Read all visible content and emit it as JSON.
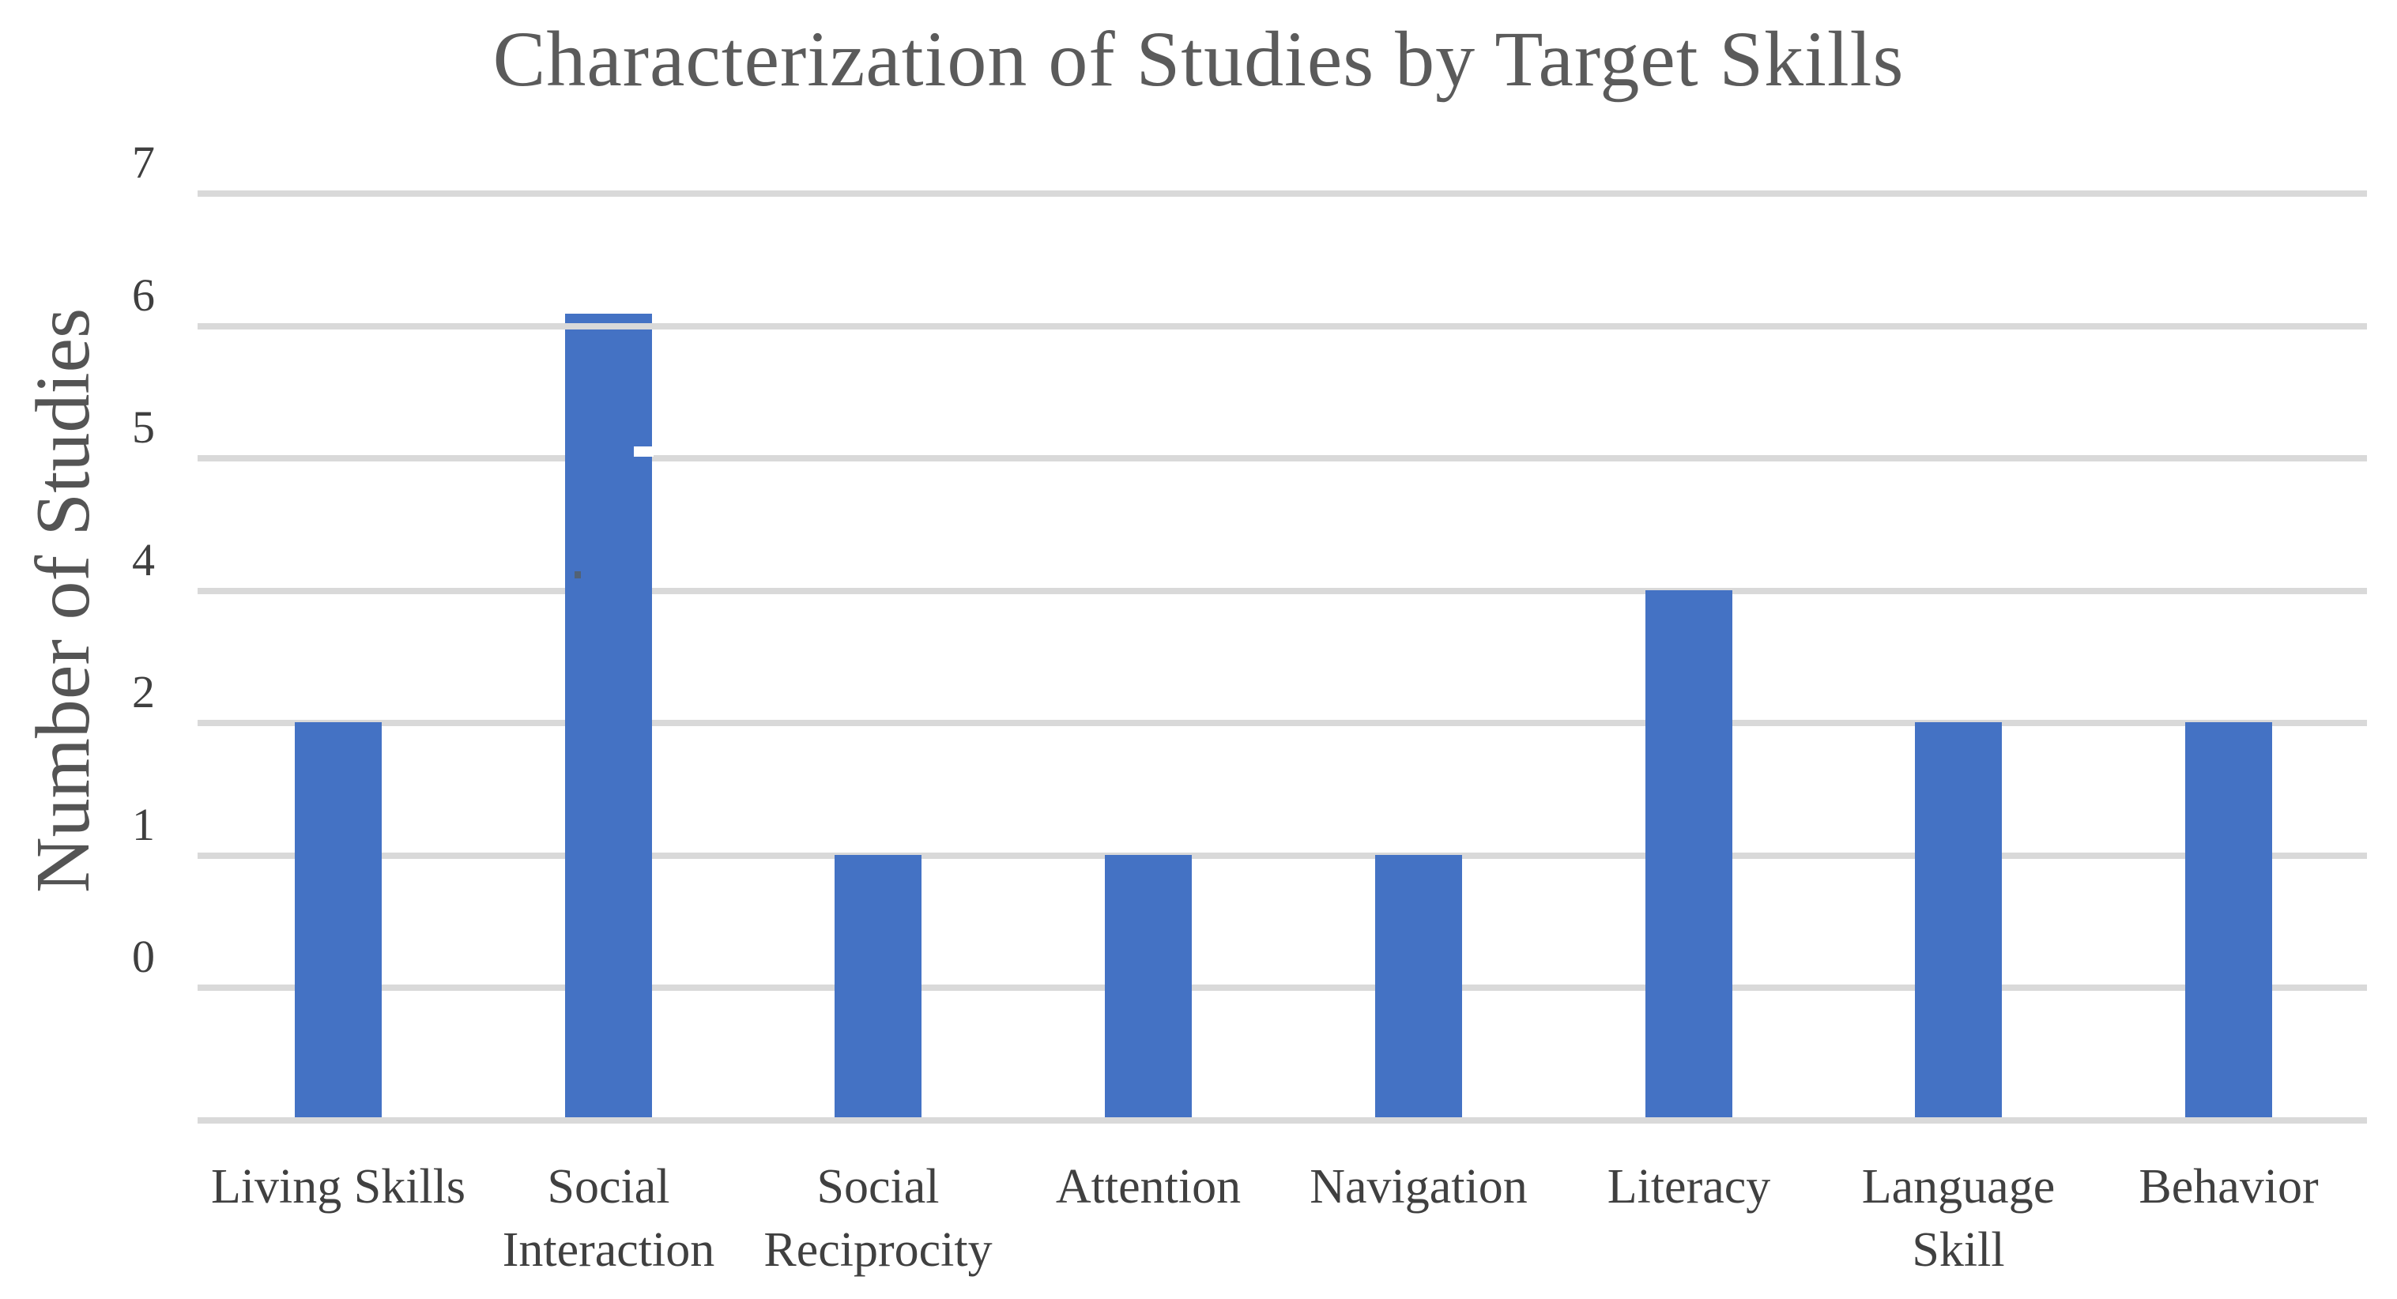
{
  "chart": {
    "title": "Characterization of Studies by Target Skills",
    "y_axis": {
      "title": "Number of Studies",
      "tick_labels": [
        "7",
        "6",
        "5",
        "4",
        "2",
        "1",
        "0"
      ]
    },
    "categories": [
      {
        "label": "Living Skills",
        "lines": [
          "Living Skills"
        ],
        "value": 2
      },
      {
        "label": "Social Interaction",
        "lines": [
          "Social",
          "Interaction"
        ],
        "value": 6
      },
      {
        "label": "Social Reciprocity",
        "lines": [
          "Social",
          "Reciprocity"
        ],
        "value": 1
      },
      {
        "label": "Attention",
        "lines": [
          "Attention"
        ],
        "value": 1
      },
      {
        "label": "Navigation",
        "lines": [
          "Navigation"
        ],
        "value": 1
      },
      {
        "label": "Literacy",
        "lines": [
          "Literacy"
        ],
        "value": 4
      },
      {
        "label": "Language Skill",
        "lines": [
          "Language",
          "Skill"
        ],
        "value": 2
      },
      {
        "label": "Behavior",
        "lines": [
          "Behavior"
        ],
        "value": 2
      }
    ],
    "colors": {
      "bar": "#4472C4",
      "gridline": "#D9D9D9",
      "title_text": "#5B5B5B",
      "axis_text": "#3F3F3F"
    }
  },
  "chart_data": {
    "type": "bar",
    "categories": [
      "Living Skills",
      "Social Interaction",
      "Social Reciprocity",
      "Attention",
      "Navigation",
      "Literacy",
      "Language Skill",
      "Behavior"
    ],
    "values": [
      2,
      6,
      1,
      1,
      1,
      4,
      2,
      2
    ],
    "title": "Characterization of Studies by Target Skills",
    "xlabel": "",
    "ylabel": "Number of Studies",
    "yticks_shown": [
      "7",
      "6",
      "5",
      "4",
      "2",
      "1",
      "0"
    ],
    "ylim": [
      -1,
      7
    ],
    "grid": true,
    "legend": false,
    "bar_color": "#4472C4",
    "layout_notes": "y tick labels skip the value 3 although gridlines are evenly spaced; bars extend one grid step below the 0 gridline to the plot floor; Social Interaction bar top sits slightly above the 6 gridline with the gridline drawn across it"
  }
}
